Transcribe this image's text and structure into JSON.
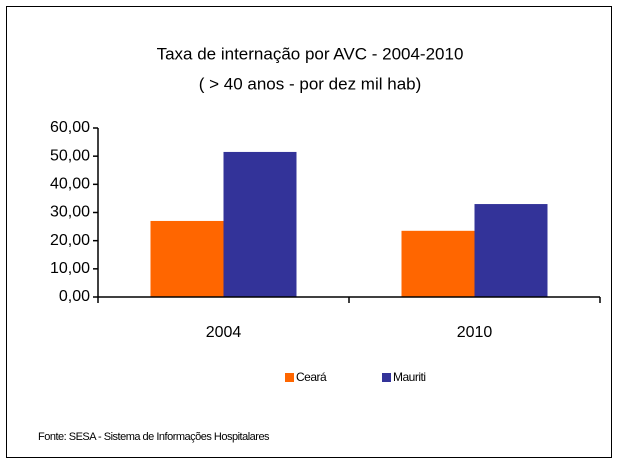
{
  "chart_data": {
    "type": "bar",
    "title": "Taxa de internação por AVC - 2004-2010",
    "subtitle": "( > 40 anos - por dez mil hab)",
    "categories": [
      "2004",
      "2010"
    ],
    "series": [
      {
        "name": "Ceará",
        "color": "#ff6600",
        "values": [
          27,
          23.5
        ]
      },
      {
        "name": "Mauriti",
        "color": "#333399",
        "values": [
          51.5,
          33
        ]
      }
    ],
    "ylim": [
      0,
      60
    ],
    "yticks": [
      {
        "value": 0,
        "label": "0,00"
      },
      {
        "value": 10,
        "label": "10,00"
      },
      {
        "value": 20,
        "label": "20,00"
      },
      {
        "value": 30,
        "label": "30,00"
      },
      {
        "value": 40,
        "label": "40,00"
      },
      {
        "value": 50,
        "label": "50,00"
      },
      {
        "value": 60,
        "label": "60,00"
      }
    ],
    "source": "Fonte: SESA - Sistema de Informações Hospitalares"
  }
}
